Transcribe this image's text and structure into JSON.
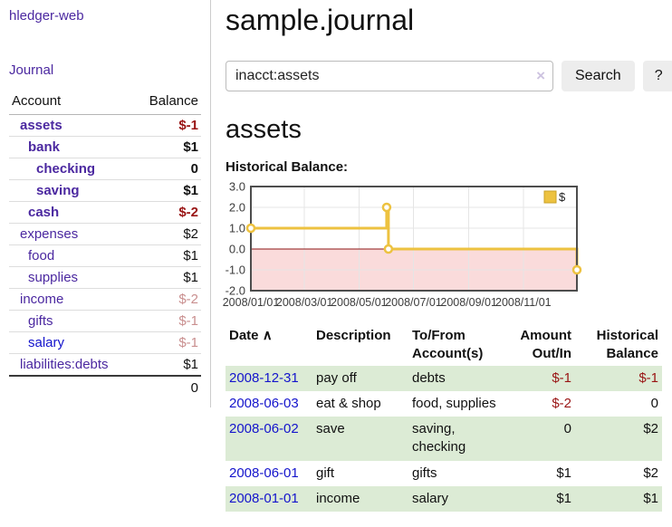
{
  "sidebar": {
    "app_title": "hledger-web",
    "journal_link": "Journal",
    "accounts_table": {
      "headers": {
        "account": "Account",
        "balance": "Balance"
      },
      "rows": [
        {
          "name": "assets",
          "indent": 1,
          "in_filter": true,
          "balance": "$-1"
        },
        {
          "name": "bank",
          "indent": 2,
          "in_filter": true,
          "balance": "$1"
        },
        {
          "name": "checking",
          "indent": 3,
          "in_filter": true,
          "balance": "0"
        },
        {
          "name": "saving",
          "indent": 3,
          "in_filter": true,
          "balance": "$1"
        },
        {
          "name": "cash",
          "indent": 2,
          "in_filter": true,
          "balance": "$-2"
        },
        {
          "name": "expenses",
          "indent": 1,
          "in_filter": false,
          "balance": "$2"
        },
        {
          "name": "food",
          "indent": 2,
          "in_filter": false,
          "balance": "$1"
        },
        {
          "name": "supplies",
          "indent": 2,
          "in_filter": false,
          "balance": "$1"
        },
        {
          "name": "income",
          "indent": 1,
          "in_filter": false,
          "balance": "$-2"
        },
        {
          "name": "gifts",
          "indent": 2,
          "in_filter": false,
          "balance": "$-1"
        },
        {
          "name": "salary",
          "indent": 2,
          "in_filter": false,
          "balance": "$-1",
          "unvisited": true
        },
        {
          "name": "liabilities:debts",
          "indent": 1,
          "in_filter": false,
          "balance": "$1"
        }
      ],
      "total": "0"
    }
  },
  "main": {
    "title": "sample.journal",
    "search": {
      "value": "inacct:assets",
      "clear_icon": "×",
      "search_button": "Search",
      "help_button": "?"
    },
    "account_heading": "assets",
    "chart_label": "Historical Balance:",
    "register_table": {
      "headers": {
        "date": "Date",
        "sort_icon": "∧",
        "description": "Description",
        "account_line1": "To/From",
        "account_line2": "Account(s)",
        "amount_line1": "Amount",
        "amount_line2": "Out/In",
        "balance_line1": "Historical",
        "balance_line2": "Balance"
      },
      "rows": [
        {
          "date": "2008-12-31",
          "description": "pay off",
          "accounts": "debts",
          "amount": "$-1",
          "balance": "$-1"
        },
        {
          "date": "2008-06-03",
          "description": "eat & shop",
          "accounts": "food, supplies",
          "amount": "$-2",
          "balance": "0"
        },
        {
          "date": "2008-06-02",
          "description": "save",
          "accounts": "saving, checking",
          "amount": "0",
          "balance": "$2"
        },
        {
          "date": "2008-06-01",
          "description": "gift",
          "accounts": "gifts",
          "amount": "$1",
          "balance": "$2"
        },
        {
          "date": "2008-01-01",
          "description": "income",
          "accounts": "salary",
          "amount": "$1",
          "balance": "$1"
        }
      ]
    }
  },
  "chart_data": {
    "type": "line",
    "step": true,
    "title": "Historical Balance",
    "series": [
      {
        "name": "$",
        "color": "#edc240",
        "points": [
          [
            "2008-01-01",
            1
          ],
          [
            "2008-06-01",
            2
          ],
          [
            "2008-06-03",
            0
          ],
          [
            "2008-12-31",
            -1
          ]
        ]
      }
    ],
    "xlim": [
      "2008-01-01",
      "2008-12-31"
    ],
    "ylim": [
      -2,
      3
    ],
    "x_ticks": [
      "2008/01/01",
      "2008/03/01",
      "2008/05/01",
      "2008/07/01",
      "2008/09/01",
      "2008/11/01"
    ],
    "y_ticks": [
      3,
      2,
      1,
      0,
      -1,
      -2
    ],
    "y_tick_labels": [
      "3.0",
      "2.0",
      "1.0",
      "0.0",
      "-1.0",
      "-2.0"
    ],
    "legend": {
      "label": "$",
      "position": "top-right"
    },
    "grid": true,
    "grid_color": "#e5e5e5",
    "border_color": "#4d4d4d",
    "negative_region_color": "#fadbdb",
    "zero_line_color": "#8c1616",
    "tick_label_color": "#3c3c3c"
  }
}
